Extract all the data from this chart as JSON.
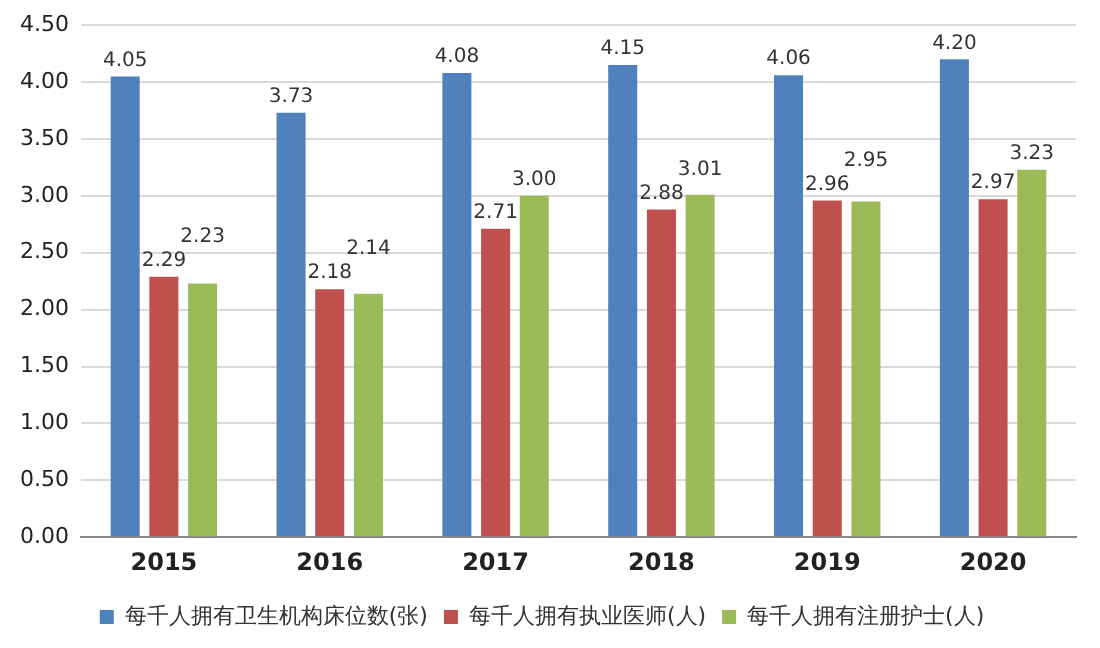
{
  "chart_data": {
    "type": "bar",
    "categories": [
      "2015",
      "2016",
      "2017",
      "2018",
      "2019",
      "2020"
    ],
    "series": [
      {
        "name": "每千人拥有卫生机构床位数(张)",
        "color": "#4f81bd",
        "values": [
          4.05,
          3.73,
          4.08,
          4.15,
          4.06,
          4.2
        ],
        "value_labels": [
          "4.05",
          "3.73",
          "4.08",
          "4.15",
          "4.06",
          "4.20"
        ]
      },
      {
        "name": "每千人拥有执业医师(人)",
        "color": "#c0504d",
        "values": [
          2.29,
          2.18,
          2.71,
          2.88,
          2.96,
          2.97
        ],
        "value_labels": [
          "2.29",
          "2.18",
          "2.71",
          "2.88",
          "2.96",
          "2.97"
        ]
      },
      {
        "name": "每千人拥有注册护士(人)",
        "color": "#9bbb59",
        "values": [
          2.23,
          2.14,
          3.0,
          3.01,
          2.95,
          3.23
        ],
        "value_labels": [
          "2.23",
          "2.14",
          "3.00",
          "3.01",
          "2.95",
          "3.23"
        ]
      }
    ],
    "ylim": [
      0,
      4.5
    ],
    "yticks": [
      {
        "value": 0,
        "label": "0.00"
      },
      {
        "value": 0.5,
        "label": "0.50"
      },
      {
        "value": 1,
        "label": "1.00"
      },
      {
        "value": 1.5,
        "label": "1.50"
      },
      {
        "value": 2,
        "label": "2.00"
      },
      {
        "value": 2.5,
        "label": "2.50"
      },
      {
        "value": 3,
        "label": "3.00"
      },
      {
        "value": 3.5,
        "label": "3.50"
      },
      {
        "value": 4,
        "label": "4.00"
      },
      {
        "value": 4.5,
        "label": "4.50"
      }
    ],
    "grid": "y",
    "legend": "bottom"
  }
}
